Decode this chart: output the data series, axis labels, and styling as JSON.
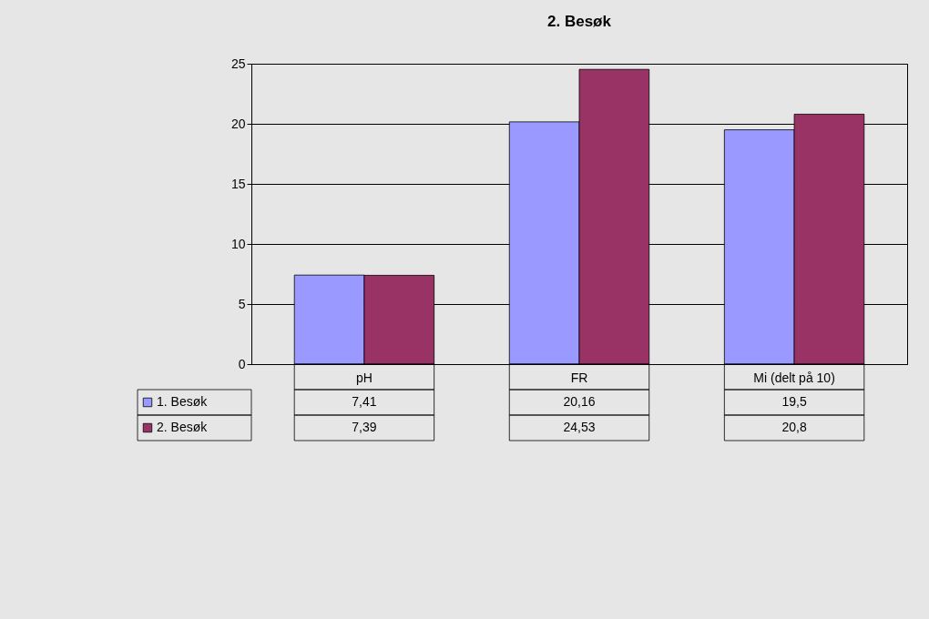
{
  "chart_data": {
    "type": "bar",
    "title": "2. Besøk",
    "categories": [
      "pH",
      "FR",
      "Mi (delt på 10)"
    ],
    "series": [
      {
        "name": "1. Besøk",
        "color": "#9999ff",
        "values": [
          7.41,
          20.16,
          19.5
        ],
        "value_labels": [
          "7,41",
          "20,16",
          "19,5"
        ]
      },
      {
        "name": "2. Besøk",
        "color": "#993366",
        "values": [
          7.39,
          24.53,
          20.8
        ],
        "value_labels": [
          "7,39",
          "24,53",
          "20,8"
        ]
      }
    ],
    "ylim": [
      0,
      25
    ],
    "yticks": [
      0,
      5,
      10,
      15,
      20,
      25
    ],
    "grid": "y",
    "legend": "bottom left"
  }
}
